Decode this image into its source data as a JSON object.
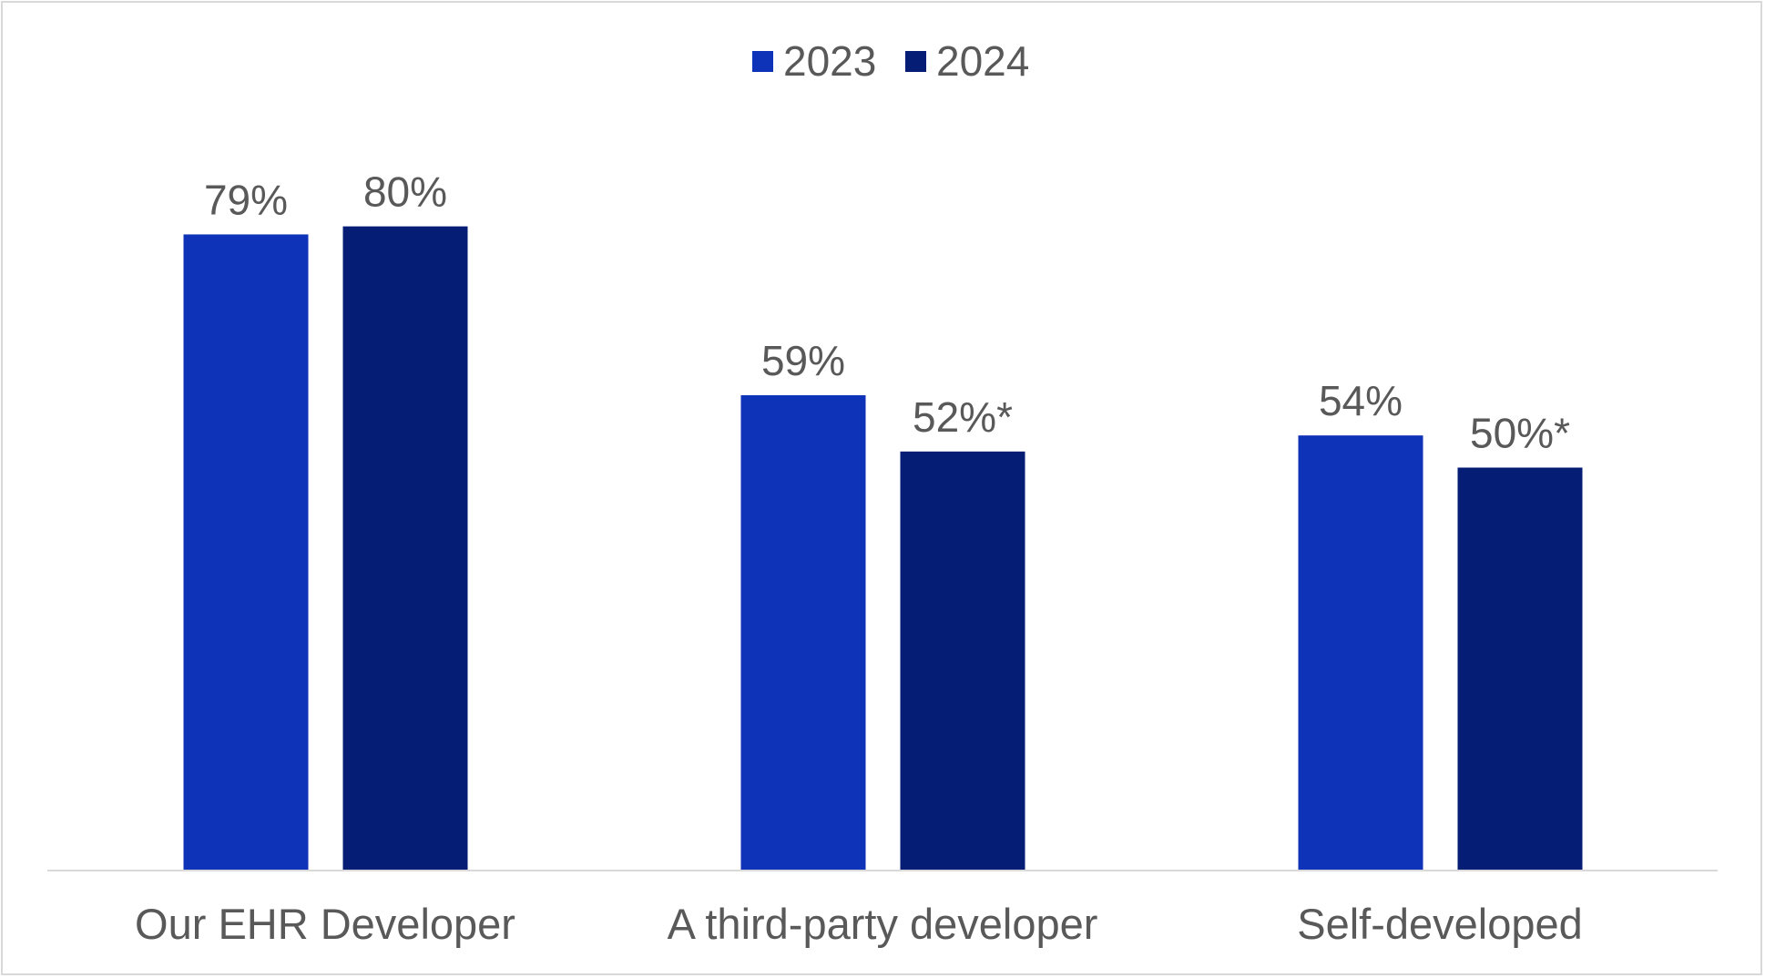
{
  "chart_data": {
    "type": "bar",
    "title": "",
    "xlabel": "",
    "ylabel": "",
    "ylim": [
      0,
      100
    ],
    "grid": false,
    "legend_position": "top",
    "categories": [
      "Our EHR Developer",
      "A third-party developer",
      "Self-developed"
    ],
    "series": [
      {
        "name": "2023",
        "color": "#0F33B8",
        "values": [
          79,
          59,
          54
        ],
        "labels": [
          "79%",
          "59%",
          "54%"
        ]
      },
      {
        "name": "2024",
        "color": "#061D75",
        "values": [
          80,
          52,
          50
        ],
        "labels": [
          "80%",
          "52%*",
          "50%*"
        ]
      }
    ]
  }
}
